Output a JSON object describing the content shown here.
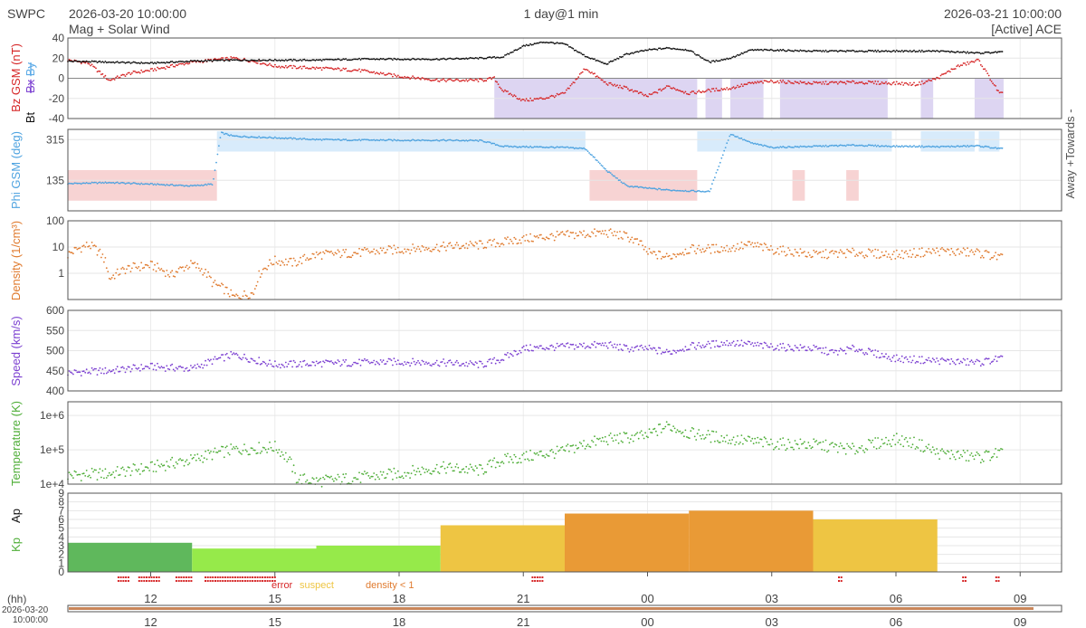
{
  "header": {
    "brand": "SWPC",
    "start_time": "2026-03-20 10:00:00",
    "subtitle": "Mag + Solar Wind",
    "resolution": "1 day@1 min",
    "end_time": "2026-03-21 10:00:00",
    "source": "[Active] ACE"
  },
  "colors": {
    "bz": "#d62728",
    "bt": "#111111",
    "by": "#5aa9e6",
    "bx": "#7b3fd1",
    "phi": "#4ea3e0",
    "phi_away_fill": "#d8ebfb",
    "phi_toward_fill": "#f7d3d3",
    "bz_south_fill": "#ddd5f2",
    "density": "#e07b2f",
    "speed": "#7b3fd1",
    "temperature": "#4fae38",
    "kp_green": "#5fb85c",
    "kp_lightgreen": "#96ea4a",
    "kp_yellow": "#eec543",
    "kp_orange": "#e99a36",
    "error": "#d62728",
    "suspect": "#eec543",
    "density_flag": "#e07b2f"
  },
  "chart_data": {
    "type": "line",
    "time_axis": {
      "start": "2026-03-20 10:00:00",
      "end": "2026-03-21 10:00:00",
      "unit_label": "(hh)",
      "tick_labels": [
        "12",
        "15",
        "18",
        "21",
        "00",
        "03",
        "06",
        "09"
      ],
      "tick_hours_from_start": [
        2,
        5,
        8,
        11,
        14,
        17,
        20,
        23
      ],
      "date_label_line1": "2026-03-20",
      "date_label_line2": "10:00:00"
    },
    "panels": {
      "mag": {
        "ylabel_bz": "Bz GSM (nT)",
        "ylabel_bt": "Bt",
        "ylabel_bx": "Bx",
        "ylabel_by": "By",
        "ylim": [
          -40,
          40
        ],
        "ticks": [
          "40",
          "20",
          "0",
          "-20",
          "-40"
        ],
        "bt_series": [
          [
            0,
            17
          ],
          [
            1,
            16
          ],
          [
            2,
            15
          ],
          [
            3,
            17
          ],
          [
            4,
            18
          ],
          [
            5,
            18
          ],
          [
            6,
            18
          ],
          [
            7,
            19
          ],
          [
            8,
            19
          ],
          [
            9,
            19
          ],
          [
            10,
            20
          ],
          [
            10.5,
            21
          ],
          [
            11,
            32
          ],
          [
            11.5,
            36
          ],
          [
            12,
            34
          ],
          [
            12.5,
            22
          ],
          [
            13,
            14
          ],
          [
            13.5,
            24
          ],
          [
            14,
            28
          ],
          [
            14.5,
            30
          ],
          [
            15,
            28
          ],
          [
            15.5,
            16
          ],
          [
            16,
            20
          ],
          [
            16.5,
            28
          ],
          [
            17,
            28
          ],
          [
            18,
            27
          ],
          [
            19,
            27
          ],
          [
            20,
            27
          ],
          [
            20.5,
            27
          ],
          [
            21,
            27
          ],
          [
            22,
            25
          ],
          [
            22.5,
            26
          ]
        ],
        "bz_series": [
          [
            0,
            18
          ],
          [
            0.5,
            15
          ],
          [
            1,
            -2
          ],
          [
            1.5,
            5
          ],
          [
            2,
            8
          ],
          [
            3,
            16
          ],
          [
            4,
            20
          ],
          [
            4.5,
            17
          ],
          [
            5,
            12
          ],
          [
            6,
            10
          ],
          [
            7,
            8
          ],
          [
            8,
            2
          ],
          [
            9,
            -2
          ],
          [
            10,
            -2
          ],
          [
            10.3,
            0
          ],
          [
            10.5,
            -12
          ],
          [
            11,
            -22
          ],
          [
            11.5,
            -20
          ],
          [
            12,
            -15
          ],
          [
            12.5,
            10
          ],
          [
            13,
            -5
          ],
          [
            13.5,
            -10
          ],
          [
            14,
            -18
          ],
          [
            14.5,
            -8
          ],
          [
            15,
            -15
          ],
          [
            15.5,
            -12
          ],
          [
            16,
            -10
          ],
          [
            16.5,
            -5
          ],
          [
            17,
            -3
          ],
          [
            18,
            -5
          ],
          [
            19,
            -4
          ],
          [
            20,
            -5
          ],
          [
            20.5,
            -6
          ],
          [
            21,
            0
          ],
          [
            21.5,
            12
          ],
          [
            22,
            18
          ],
          [
            22.5,
            -15
          ]
        ],
        "south_shading": [
          [
            10.3,
            15.2
          ],
          [
            15.4,
            15.8
          ],
          [
            16,
            16.8
          ],
          [
            17.2,
            19.8
          ],
          [
            20.6,
            20.9
          ],
          [
            21.9,
            22.6
          ]
        ]
      },
      "phi": {
        "ylabel": "Phi GSM (deg)",
        "ticks": [
          "315",
          "135"
        ],
        "right_label": "Away +Towards -",
        "series": [
          [
            0,
            120
          ],
          [
            1,
            125
          ],
          [
            2,
            118
          ],
          [
            3,
            110
          ],
          [
            3.5,
            118
          ],
          [
            3.7,
            345
          ],
          [
            4,
            330
          ],
          [
            5,
            323
          ],
          [
            6,
            315
          ],
          [
            7,
            313
          ],
          [
            8,
            312
          ],
          [
            9,
            312
          ],
          [
            10,
            310
          ],
          [
            10.5,
            285
          ],
          [
            11,
            283
          ],
          [
            12,
            280
          ],
          [
            12.5,
            275
          ],
          [
            13,
            180
          ],
          [
            13.5,
            110
          ],
          [
            14,
            100
          ],
          [
            14.5,
            92
          ],
          [
            15,
            88
          ],
          [
            15.5,
            85
          ],
          [
            16,
            340
          ],
          [
            16.5,
            300
          ],
          [
            17,
            280
          ],
          [
            18,
            285
          ],
          [
            19,
            290
          ],
          [
            20,
            285
          ],
          [
            20.5,
            285
          ],
          [
            21,
            283
          ],
          [
            22,
            287
          ],
          [
            22.5,
            275
          ]
        ],
        "away_shading": [
          [
            3.6,
            12.5
          ],
          [
            15.2,
            19.9
          ],
          [
            20.6,
            21.9
          ],
          [
            22,
            22.5
          ]
        ],
        "toward_shading": [
          [
            0,
            3.6
          ],
          [
            12.6,
            15.2
          ],
          [
            17.5,
            17.8
          ],
          [
            18.8,
            19.1
          ]
        ]
      },
      "density": {
        "ylabel": "Density (1/cm³)",
        "ticks": [
          "100",
          "10",
          "1"
        ],
        "series": [
          [
            0,
            5
          ],
          [
            0.5,
            12
          ],
          [
            1,
            0.6
          ],
          [
            1.5,
            1.6
          ],
          [
            2,
            2
          ],
          [
            2.5,
            0.8
          ],
          [
            3,
            2.2
          ],
          [
            3.5,
            0.4
          ],
          [
            4,
            0.12
          ],
          [
            4.5,
            0.18
          ],
          [
            5,
            3
          ],
          [
            5.5,
            2.5
          ],
          [
            6,
            5
          ],
          [
            7,
            6
          ],
          [
            8,
            8
          ],
          [
            9,
            10
          ],
          [
            10,
            12
          ],
          [
            10.5,
            15
          ],
          [
            11,
            20
          ],
          [
            12,
            28
          ],
          [
            13,
            35
          ],
          [
            13.5,
            25
          ],
          [
            14,
            6
          ],
          [
            14.5,
            4
          ],
          [
            15,
            8
          ],
          [
            16,
            9
          ],
          [
            16.5,
            12
          ],
          [
            17,
            8
          ],
          [
            18,
            5
          ],
          [
            19,
            6
          ],
          [
            20,
            5
          ],
          [
            21,
            7
          ],
          [
            22,
            6
          ],
          [
            22.5,
            4
          ]
        ]
      },
      "speed": {
        "ylabel": "Speed (km/s)",
        "ticks": [
          "600",
          "550",
          "500",
          "450",
          "400"
        ],
        "series": [
          [
            0,
            445
          ],
          [
            1,
            450
          ],
          [
            2,
            460
          ],
          [
            3,
            455
          ],
          [
            3.5,
            475
          ],
          [
            4,
            490
          ],
          [
            5,
            465
          ],
          [
            6,
            468
          ],
          [
            7,
            470
          ],
          [
            8,
            472
          ],
          [
            9,
            470
          ],
          [
            10,
            465
          ],
          [
            10.5,
            480
          ],
          [
            11,
            505
          ],
          [
            12,
            510
          ],
          [
            13,
            515
          ],
          [
            13.5,
            505
          ],
          [
            14,
            505
          ],
          [
            14.5,
            495
          ],
          [
            15,
            510
          ],
          [
            16,
            520
          ],
          [
            17,
            510
          ],
          [
            18,
            505
          ],
          [
            18.5,
            495
          ],
          [
            19,
            505
          ],
          [
            20,
            480
          ],
          [
            21,
            475
          ],
          [
            22,
            470
          ],
          [
            22.5,
            480
          ]
        ]
      },
      "temperature": {
        "ylabel": "Temperature (K)",
        "ticks": [
          "1e+6",
          "1e+5",
          "1e+4"
        ],
        "series": [
          [
            0,
            18000.0
          ],
          [
            1,
            20000.0
          ],
          [
            2,
            30000.0
          ],
          [
            3,
            50000.0
          ],
          [
            4,
            100000.0
          ],
          [
            5,
            120000.0
          ],
          [
            5.5,
            15000.0
          ],
          [
            6,
            12000.0
          ],
          [
            7,
            15000.0
          ],
          [
            8,
            20000.0
          ],
          [
            9,
            30000.0
          ],
          [
            10,
            25000.0
          ],
          [
            10.5,
            50000.0
          ],
          [
            11,
            60000.0
          ],
          [
            12,
            90000.0
          ],
          [
            13,
            200000.0
          ],
          [
            14,
            250000.0
          ],
          [
            14.5,
            500000.0
          ],
          [
            15,
            300000.0
          ],
          [
            16,
            200000.0
          ],
          [
            17,
            150000.0
          ],
          [
            18,
            140000.0
          ],
          [
            19,
            100000.0
          ],
          [
            20,
            200000.0
          ],
          [
            20.5,
            150000.0
          ],
          [
            21,
            80000.0
          ],
          [
            22,
            60000.0
          ],
          [
            22.5,
            80000.0
          ]
        ]
      },
      "kp": {
        "ylabel_kp": "Kp",
        "ylabel_ap": "Ap",
        "ticks": [
          "9",
          "8",
          "7",
          "6",
          "5",
          "4",
          "3",
          "2",
          "1",
          "0"
        ],
        "bars": [
          {
            "start": 0,
            "end": 3,
            "value": 3.33,
            "color": "kp_green"
          },
          {
            "start": 3,
            "end": 6,
            "value": 2.67,
            "color": "kp_lightgreen"
          },
          {
            "start": 6,
            "end": 9,
            "value": 3.0,
            "color": "kp_lightgreen"
          },
          {
            "start": 9,
            "end": 12,
            "value": 5.33,
            "color": "kp_yellow"
          },
          {
            "start": 12,
            "end": 15,
            "value": 6.67,
            "color": "kp_orange"
          },
          {
            "start": 15,
            "end": 18,
            "value": 7.0,
            "color": "kp_orange"
          },
          {
            "start": 18,
            "end": 21,
            "value": 6.0,
            "color": "kp_yellow"
          }
        ]
      }
    },
    "flags": {
      "error_label": "error",
      "suspect_label": "suspect",
      "density_label": "density < 1",
      "error_ranges": [
        [
          1.2,
          1.5
        ],
        [
          1.7,
          2.2
        ],
        [
          2.6,
          3.0
        ],
        [
          3.3,
          5.0
        ],
        [
          11.2,
          11.5
        ],
        [
          18.6,
          18.7
        ],
        [
          21.6,
          21.7
        ],
        [
          22.4,
          22.5
        ]
      ]
    }
  }
}
